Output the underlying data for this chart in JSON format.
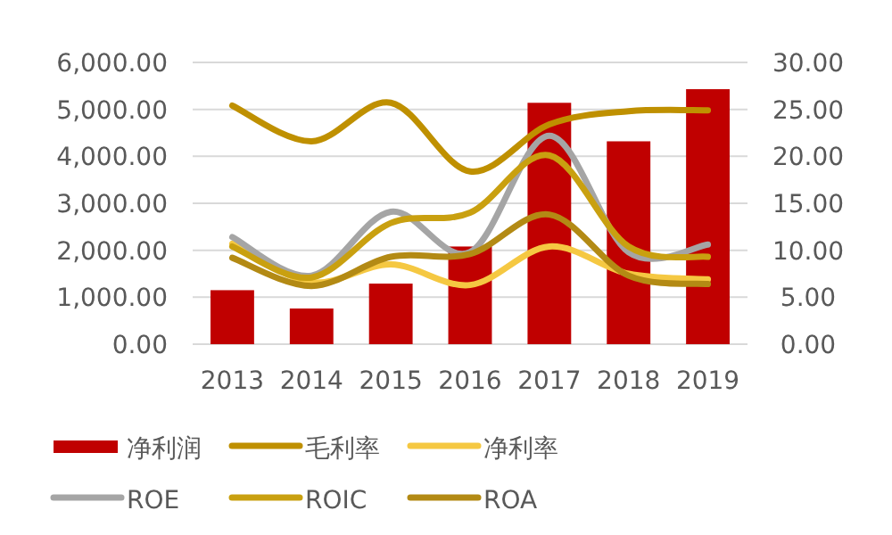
{
  "chart_data": {
    "type": "bar",
    "categories": [
      "2013",
      "2014",
      "2015",
      "2016",
      "2017",
      "2018",
      "2019"
    ],
    "series": [
      {
        "name": "净利润",
        "color": "#c00000",
        "values": [
          1150,
          760,
          1290,
          2080,
          5140,
          4320,
          5430
        ]
      },
      {
        "name": "毛利率",
        "type": "line",
        "axis": "y2",
        "color": "#bf9000",
        "values": [
          25.4,
          21.6,
          25.7,
          18.4,
          23.4,
          24.8,
          24.9
        ]
      },
      {
        "name": "净利率",
        "type": "line",
        "axis": "y2",
        "color": "#f5c842",
        "values": [
          10.7,
          6.6,
          8.5,
          6.3,
          10.4,
          7.5,
          6.9
        ]
      },
      {
        "name": "ROE",
        "type": "line",
        "axis": "y2",
        "color": "#a5a5a5",
        "values": [
          11.4,
          7.3,
          14.1,
          9.8,
          22.2,
          9.8,
          10.6
        ]
      },
      {
        "name": "ROIC",
        "type": "line",
        "axis": "y2",
        "color": "#c9a010",
        "values": [
          10.4,
          7.1,
          12.9,
          14.0,
          20.1,
          10.4,
          9.3
        ]
      },
      {
        "name": "ROA",
        "type": "line",
        "axis": "y2",
        "color": "#b38a14",
        "values": [
          9.2,
          6.2,
          9.3,
          9.6,
          13.8,
          7.3,
          6.4
        ]
      }
    ],
    "ylim": [
      0,
      6000
    ],
    "yticks": [
      {
        "value": 0,
        "label": "0.00"
      },
      {
        "value": 1000,
        "label": "1,000.00"
      },
      {
        "value": 2000,
        "label": "2,000.00"
      },
      {
        "value": 3000,
        "label": "3,000.00"
      },
      {
        "value": 4000,
        "label": "4,000.00"
      },
      {
        "value": 5000,
        "label": "5,000.00"
      },
      {
        "value": 6000,
        "label": "6,000.00"
      }
    ],
    "y2lim": [
      0,
      30
    ],
    "y2ticks": [
      {
        "value": 0,
        "label": "0.00"
      },
      {
        "value": 5,
        "label": "5.00"
      },
      {
        "value": 10,
        "label": "10.00"
      },
      {
        "value": 15,
        "label": "15.00"
      },
      {
        "value": 20,
        "label": "20.00"
      },
      {
        "value": 25,
        "label": "25.00"
      },
      {
        "value": 30,
        "label": "30.00"
      }
    ],
    "grid": "y",
    "legend": "bottom",
    "line_style": "solid"
  }
}
